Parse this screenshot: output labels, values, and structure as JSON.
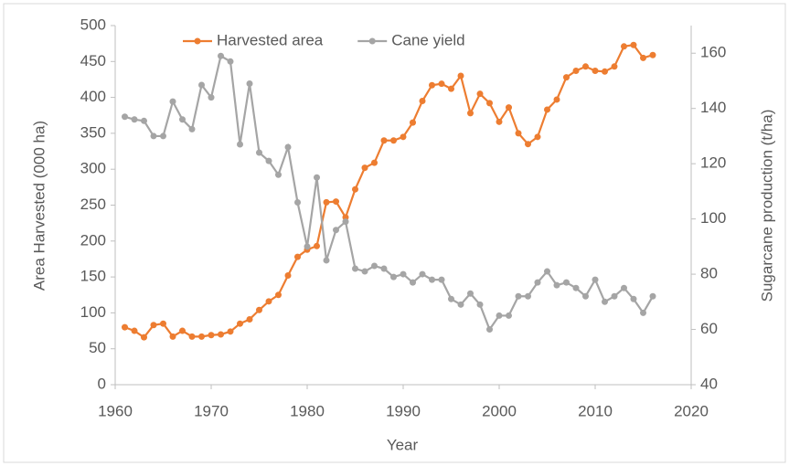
{
  "chart_data": {
    "type": "line",
    "x_label": "Year",
    "y_label": "Area Harvested  (000 ha)",
    "y2_label": "Sugarcane production (t/ha)",
    "x": [
      1961,
      1962,
      1963,
      1964,
      1965,
      1966,
      1967,
      1968,
      1969,
      1970,
      1971,
      1972,
      1973,
      1974,
      1975,
      1976,
      1977,
      1978,
      1979,
      1980,
      1981,
      1982,
      1983,
      1984,
      1985,
      1986,
      1987,
      1988,
      1989,
      1990,
      1991,
      1992,
      1993,
      1994,
      1995,
      1996,
      1997,
      1998,
      1999,
      2000,
      2001,
      2002,
      2003,
      2004,
      2005,
      2006,
      2007,
      2008,
      2009,
      2010,
      2011,
      2012,
      2013,
      2014,
      2015,
      2016
    ],
    "series": [
      {
        "name": "Harvested area",
        "color": "#ed7d31",
        "axis": "y",
        "values": [
          80,
          75,
          66,
          83,
          85,
          67,
          75,
          67,
          67,
          69,
          70,
          74,
          85,
          91,
          104,
          116,
          125,
          152,
          178,
          188,
          193,
          254,
          255,
          233,
          272,
          302,
          309,
          340,
          340,
          345,
          365,
          395,
          417,
          419,
          412,
          430,
          378,
          405,
          392,
          366,
          386,
          350,
          335,
          345,
          383,
          397,
          428,
          437,
          443,
          437,
          436,
          443,
          471,
          473,
          455,
          459
        ]
      },
      {
        "name": "Cane yield",
        "color": "#a5a5a5",
        "axis": "y2",
        "values": [
          137,
          136,
          135.5,
          130,
          130,
          142.5,
          136,
          132.5,
          148.5,
          144,
          159,
          157,
          127,
          149,
          124,
          121,
          116,
          126,
          106,
          90,
          115,
          85,
          96,
          99,
          82,
          81,
          83,
          82,
          79,
          80,
          77,
          80,
          78,
          78,
          71,
          69,
          73,
          69,
          60,
          65,
          65,
          72,
          72,
          77,
          81,
          76,
          77,
          75,
          72,
          78,
          70,
          72,
          75,
          71,
          66,
          72
        ]
      }
    ],
    "xlim": [
      1960,
      2020
    ],
    "xticks": [
      1960,
      1970,
      1980,
      1990,
      2000,
      2010,
      2020
    ],
    "ylim": [
      0,
      500
    ],
    "yticks": [
      0,
      50,
      100,
      150,
      200,
      250,
      300,
      350,
      400,
      450,
      500
    ],
    "y2lim": [
      40,
      170
    ],
    "y2ticks": [
      40,
      60,
      80,
      100,
      120,
      140,
      160
    ],
    "grid": false,
    "legend": "top"
  }
}
